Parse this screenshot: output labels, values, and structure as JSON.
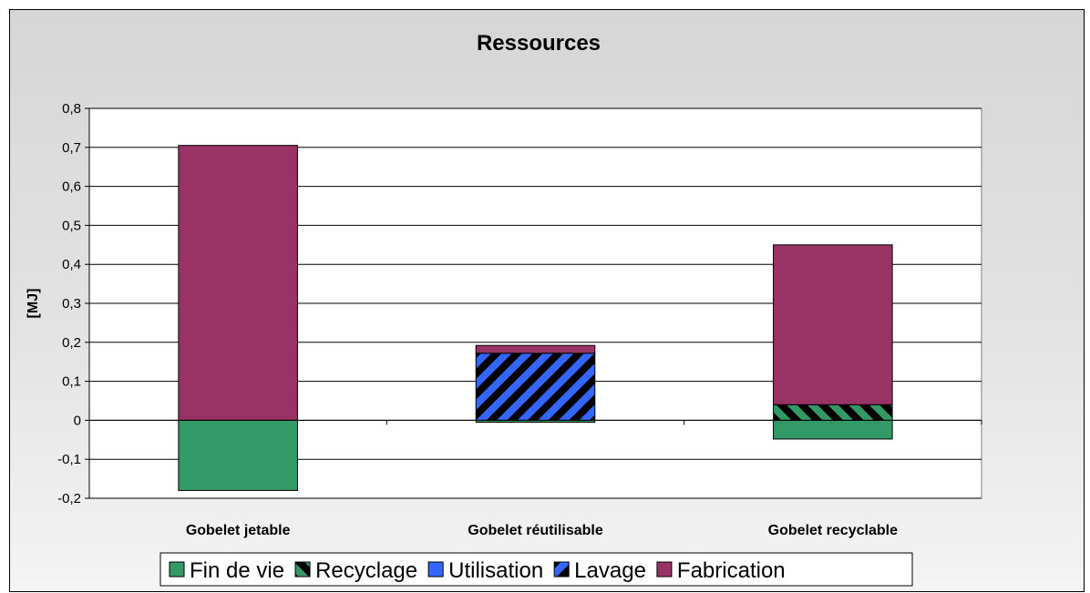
{
  "chart_data": {
    "type": "bar",
    "stacked": true,
    "title": "Ressources",
    "ylabel": "[MJ]",
    "xlabel": "",
    "categories": [
      "Gobelet jetable",
      "Gobelet réutilisable",
      "Gobelet recyclable"
    ],
    "ylim": [
      -0.2,
      0.8
    ],
    "yticks": [
      "-0,2",
      "-0,1",
      "0",
      "0,1",
      "0,2",
      "0,3",
      "0,4",
      "0,5",
      "0,6",
      "0,7",
      "0,8"
    ],
    "grid": true,
    "legend_position": "bottom",
    "series": [
      {
        "name": "Fin de vie",
        "values": [
          -0.18,
          -0.005,
          -0.048
        ],
        "color": "#339966",
        "pattern": "solid"
      },
      {
        "name": "Recyclage",
        "values": [
          0,
          0,
          0.04
        ],
        "color": "#339966",
        "pattern": "hatch"
      },
      {
        "name": "Utilisation",
        "values": [
          0,
          0,
          0
        ],
        "color": "#3366ff",
        "pattern": "solid"
      },
      {
        "name": "Lavage",
        "values": [
          0,
          0.172,
          0
        ],
        "color": "#3366ff",
        "pattern": "hatch"
      },
      {
        "name": "Fabrication",
        "values": [
          0.705,
          0.02,
          0.41
        ],
        "color": "#993366",
        "pattern": "solid"
      }
    ]
  }
}
